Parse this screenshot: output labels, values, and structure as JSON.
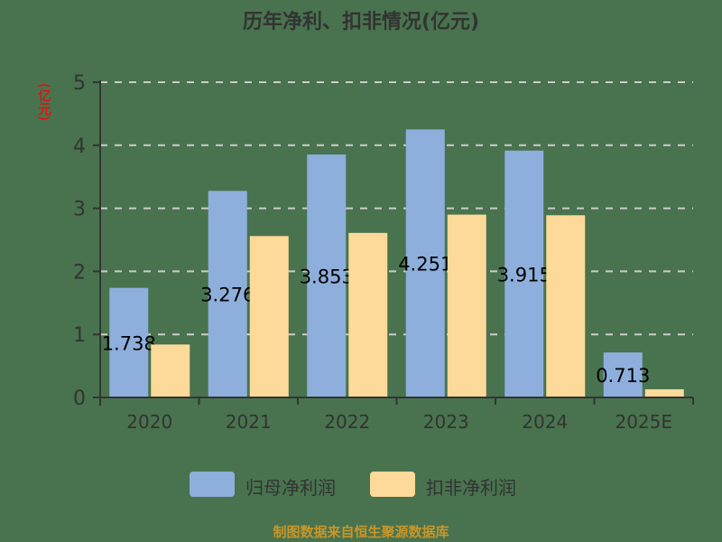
{
  "chart_data": {
    "type": "bar",
    "title": "历年净利、扣非情况(亿元)",
    "xlabel": "",
    "ylabel": "(亿元)",
    "categories": [
      "2020",
      "2021",
      "2022",
      "2023",
      "2024",
      "2025E"
    ],
    "series": [
      {
        "name": "归母净利润",
        "color": "#8eafdc",
        "values": [
          1.738,
          3.276,
          3.853,
          4.251,
          3.915,
          0.713
        ],
        "labels": [
          "1.738",
          "3.276",
          "3.853",
          "4.251",
          "3.915",
          "0.713"
        ]
      },
      {
        "name": "扣非净利润",
        "color": "#fdd99a",
        "values": [
          0.84,
          2.56,
          2.61,
          2.9,
          2.89,
          0.13
        ]
      }
    ],
    "ylim": [
      0,
      5
    ],
    "yticks": [
      "0",
      "1",
      "2",
      "3",
      "4",
      "5"
    ],
    "grid": true,
    "legend_position": "bottom"
  },
  "title": "历年净利、扣非情况(亿元)",
  "ylabel": "(亿元)",
  "legend": [
    {
      "label": "归母净利润",
      "color": "#8eafdc"
    },
    {
      "label": "扣非净利润",
      "color": "#fdd99a"
    }
  ],
  "footer": "制图数据来自恒生聚源数据库",
  "colors": {
    "background": "#48734e",
    "axis": "#333333",
    "grid": "#cccccc",
    "ylabel": "#ff0000",
    "footer": "#c8962a"
  }
}
